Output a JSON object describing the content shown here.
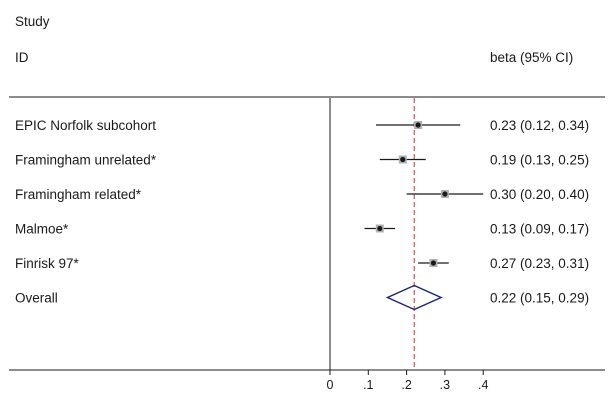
{
  "chart_data": {
    "type": "forest",
    "header": {
      "col1_line1": "Study",
      "col1_line2": "ID",
      "col2": "beta (95% CI)"
    },
    "studies": [
      {
        "label": "EPIC Norfolk subcohort",
        "estimate": 0.23,
        "lower": 0.12,
        "upper": 0.34,
        "ci_text": "0.23 (0.12, 0.34)"
      },
      {
        "label": "Framingham unrelated*",
        "estimate": 0.19,
        "lower": 0.13,
        "upper": 0.25,
        "ci_text": "0.19 (0.13, 0.25)"
      },
      {
        "label": "Framingham related*",
        "estimate": 0.3,
        "lower": 0.2,
        "upper": 0.4,
        "ci_text": "0.30 (0.20, 0.40)"
      },
      {
        "label": "Malmoe*",
        "estimate": 0.13,
        "lower": 0.09,
        "upper": 0.17,
        "ci_text": "0.13 (0.09, 0.17)"
      },
      {
        "label": "Finrisk 97*",
        "estimate": 0.27,
        "lower": 0.23,
        "upper": 0.31,
        "ci_text": "0.27 (0.23, 0.31)"
      }
    ],
    "overall": {
      "label": "Overall",
      "estimate": 0.22,
      "lower": 0.15,
      "upper": 0.29,
      "ci_text": "0.22 (0.15, 0.29)"
    },
    "null_line": 0,
    "x_ticks": [
      {
        "value": 0,
        "label": "0"
      },
      {
        "value": 0.1,
        "label": ".1"
      },
      {
        "value": 0.2,
        "label": ".2"
      },
      {
        "value": 0.3,
        "label": ".3"
      },
      {
        "value": 0.4,
        "label": ".4"
      }
    ],
    "colors": {
      "ci": "#1a1a1a",
      "diamond": "#1a237e",
      "overall_line": "#d9534f",
      "axis": "#1a1a1a"
    }
  }
}
